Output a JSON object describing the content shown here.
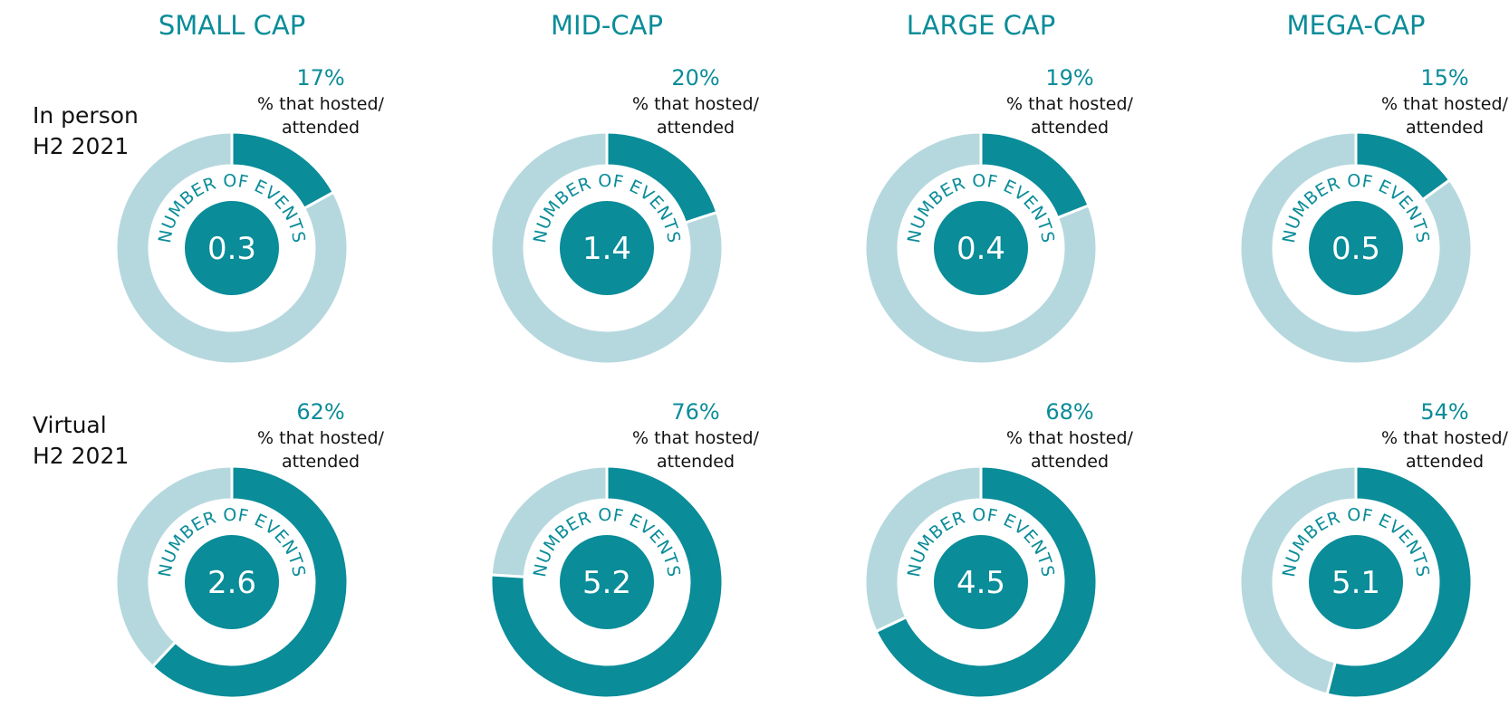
{
  "colors": {
    "accent": "#0a8c99",
    "ring_light": "#b5d8de",
    "text": "#111111",
    "white": "#ffffff"
  },
  "chart_data": {
    "type": "pie",
    "columns": [
      "SMALL CAP",
      "MID-CAP",
      "LARGE CAP",
      "MEGA-CAP"
    ],
    "rows": [
      {
        "label_line1": "In person",
        "label_line2": "H2 2021",
        "charts": [
          {
            "percent": 17,
            "percent_label": "17%",
            "events": "0.3"
          },
          {
            "percent": 20,
            "percent_label": "20%",
            "events": "1.4"
          },
          {
            "percent": 19,
            "percent_label": "19%",
            "events": "0.4"
          },
          {
            "percent": 15,
            "percent_label": "15%",
            "events": "0.5"
          }
        ]
      },
      {
        "label_line1": "Virtual",
        "label_line2": "H2 2021",
        "charts": [
          {
            "percent": 62,
            "percent_label": "62%",
            "events": "2.6"
          },
          {
            "percent": 76,
            "percent_label": "76%",
            "events": "5.2"
          },
          {
            "percent": 68,
            "percent_label": "68%",
            "events": "4.5"
          },
          {
            "percent": 54,
            "percent_label": "54%",
            "events": "5.1"
          }
        ]
      }
    ],
    "caption_line1": "% that hosted/",
    "caption_line2": "attended",
    "inner_arc_label": "NUMBER OF EVENTS"
  }
}
